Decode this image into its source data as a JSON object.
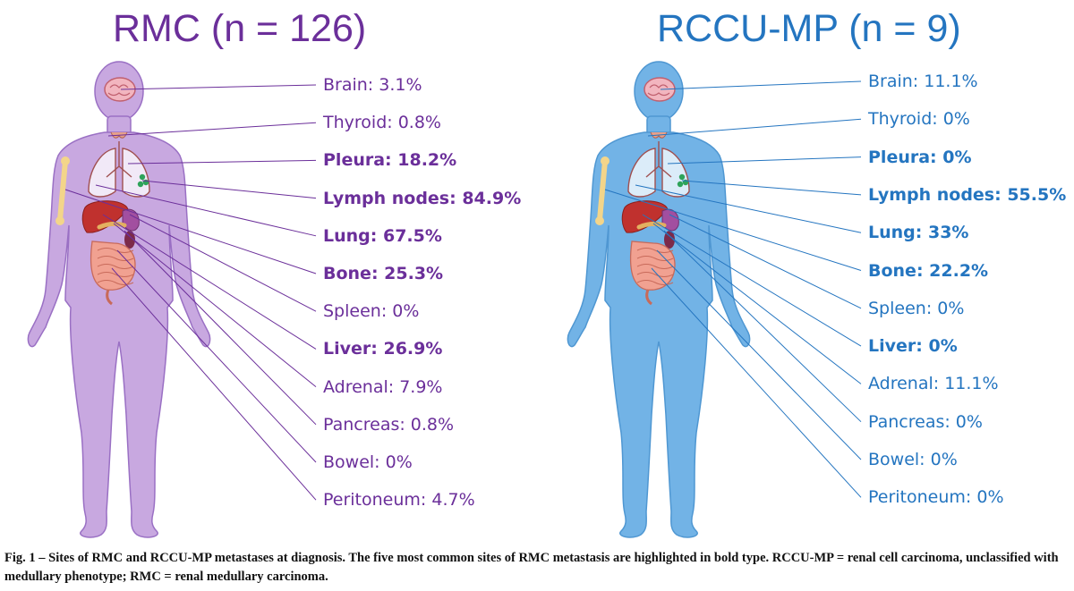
{
  "panels": [
    {
      "title": "RMC (n = 126)",
      "color": "#6b2f9a",
      "body_fill": "#c8a8e0",
      "body_stroke": "#9a70c4",
      "sites": [
        {
          "label": "Brain: 3.1%",
          "bold": false
        },
        {
          "label": "Thyroid: 0.8%",
          "bold": false
        },
        {
          "label": "Pleura: 18.2%",
          "bold": true
        },
        {
          "label": "Lymph  nodes: 84.9%",
          "bold": true
        },
        {
          "label": "Lung: 67.5%",
          "bold": true
        },
        {
          "label": "Bone: 25.3%",
          "bold": true
        },
        {
          "label": "Spleen: 0%",
          "bold": false
        },
        {
          "label": "Liver: 26.9%",
          "bold": true
        },
        {
          "label": "Adrenal: 7.9%",
          "bold": false
        },
        {
          "label": "Pancreas: 0.8%",
          "bold": false
        },
        {
          "label": "Bowel: 0%",
          "bold": false
        },
        {
          "label": "Peritoneum: 4.7%",
          "bold": false
        }
      ]
    },
    {
      "title": "RCCU-MP (n = 9)",
      "color": "#2475c0",
      "body_fill": "#72b3e6",
      "body_stroke": "#4f97d2",
      "sites": [
        {
          "label": "Brain: 11.1%",
          "bold": false
        },
        {
          "label": "Thyroid: 0%",
          "bold": false
        },
        {
          "label": "Pleura: 0%",
          "bold": true
        },
        {
          "label": "Lymph  nodes: 55.5%",
          "bold": true
        },
        {
          "label": "Lung: 33%",
          "bold": true
        },
        {
          "label": "Bone: 22.2%",
          "bold": true
        },
        {
          "label": "Spleen: 0%",
          "bold": false
        },
        {
          "label": "Liver: 0%",
          "bold": true
        },
        {
          "label": "Adrenal: 11.1%",
          "bold": false
        },
        {
          "label": "Pancreas: 0%",
          "bold": false
        },
        {
          "label": "Bowel: 0%",
          "bold": false
        },
        {
          "label": "Peritoneum: 0%",
          "bold": false
        }
      ]
    }
  ],
  "caption": "Fig. 1 – Sites of RMC and RCCU-MP metastases at diagnosis. The five most common sites of RMC metastasis are highlighted in bold type. RCCU-MP = renal cell carcinoma, unclassified with medullary phenotype; RMC = renal medullary carcinoma."
}
